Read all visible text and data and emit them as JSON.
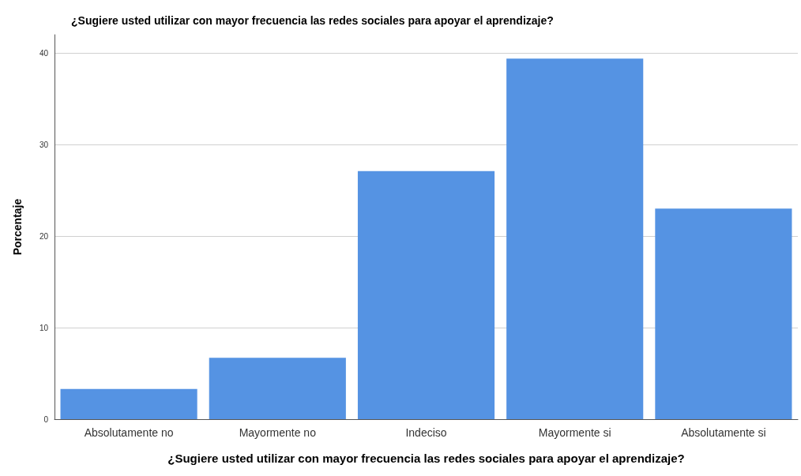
{
  "chart_data": {
    "type": "bar",
    "title": "¿Sugiere usted utilizar con mayor frecuencia las redes sociales para apoyar el aprendizaje?",
    "xlabel": "¿Sugiere usted utilizar con mayor frecuencia las redes sociales para apoyar el aprendizaje?",
    "ylabel": "Porcentaje",
    "categories": [
      "Absolutamente no",
      "Mayormente no",
      "Indeciso",
      "Mayormente si",
      "Absolutamente si"
    ],
    "values": [
      3.3,
      6.7,
      27.1,
      39.4,
      23.0
    ],
    "color": "#5593e3",
    "ylim": [
      0,
      42
    ],
    "yticks": [
      0,
      10,
      20,
      30,
      40
    ],
    "grid": "y"
  }
}
